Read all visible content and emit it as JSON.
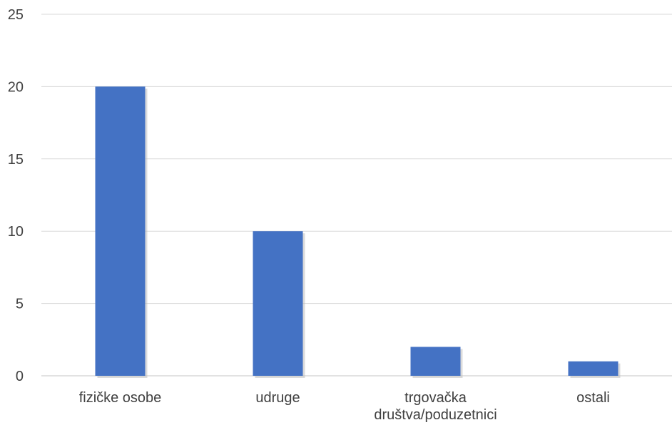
{
  "chart_data": {
    "type": "bar",
    "categories": [
      [
        "fizičke osobe"
      ],
      [
        "udruge"
      ],
      [
        "trgovačka",
        "društva/poduzetnici"
      ],
      [
        "ostali"
      ]
    ],
    "values": [
      20,
      10,
      2,
      1
    ],
    "ylim": [
      0,
      25
    ],
    "yticks": [
      "0",
      "5",
      "10",
      "15",
      "20",
      "25"
    ],
    "grid": true,
    "legend": "none",
    "bar_color": "#4472C4",
    "grid_color": "#D9D9D9"
  }
}
